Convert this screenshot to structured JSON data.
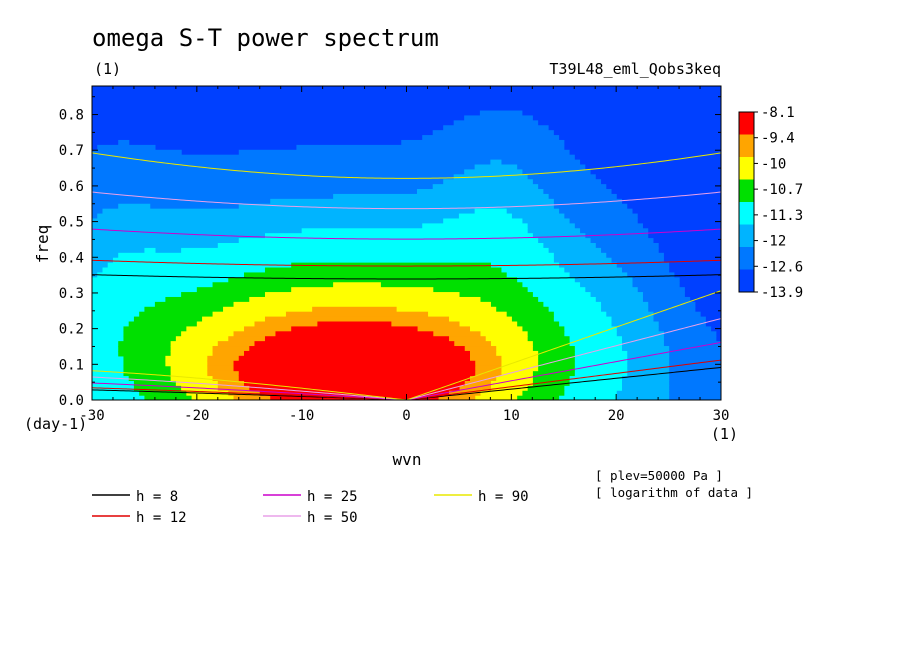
{
  "chart_data": {
    "type": "heatmap",
    "title": "omega S-T power spectrum",
    "subtitle": "(1)",
    "run_label": "T39L48_eml_Qobs3keq",
    "xlabel": "wvn",
    "ylabel": "freq",
    "x_unit": "(1)",
    "y_unit": "(day-1)",
    "xlim": [
      -30,
      30
    ],
    "ylim": [
      0,
      0.88
    ],
    "x_ticks": [
      -30,
      -20,
      -10,
      0,
      10,
      20,
      30
    ],
    "y_ticks": [
      0.0,
      0.1,
      0.2,
      0.3,
      0.4,
      0.5,
      0.6,
      0.7,
      0.8
    ],
    "x_tick_labels": [
      "-30",
      "-20",
      "-10",
      "0",
      "10",
      "20",
      "30"
    ],
    "y_tick_labels": [
      "0.0",
      "0.1",
      "0.2",
      "0.3",
      "0.4",
      "0.5",
      "0.6",
      "0.7",
      "0.8"
    ],
    "colorbar": {
      "labels": [
        "-8.1",
        "-9.4",
        "-10",
        "-10.7",
        "-11.3",
        "-12",
        "-12.6",
        "-13.9"
      ],
      "colors": [
        "#ff0000",
        "#ffa500",
        "#ffff00",
        "#00e000",
        "#00ffff",
        "#00b4ff",
        "#0078ff",
        "#0040ff"
      ]
    },
    "fill_levels": [
      {
        "name": "level-12.6",
        "color": "#0078ff",
        "threshold": -13.3
      },
      {
        "name": "level-12",
        "color": "#00b4ff",
        "threshold": -12.6
      },
      {
        "name": "level-11.3",
        "color": "#00ffff",
        "threshold": -12.0
      },
      {
        "name": "level-10.7",
        "color": "#00e000",
        "threshold": -11.3
      },
      {
        "name": "level-10",
        "color": "#ffff00",
        "threshold": -10.7
      },
      {
        "name": "level-9.4",
        "color": "#ffa500",
        "threshold": -10.0
      },
      {
        "name": "level-8.1",
        "color": "#ff0000",
        "threshold": -9.4
      }
    ],
    "background_color": "#0040ff",
    "dispersion_curves": [
      {
        "h": 8,
        "color": "#000000"
      },
      {
        "h": 12,
        "color": "#e00000"
      },
      {
        "h": 25,
        "color": "#cc00cc"
      },
      {
        "h": 50,
        "color": "#e8a0e8"
      },
      {
        "h": 90,
        "color": "#e8e800"
      }
    ],
    "legend": [
      {
        "text": "h =  8",
        "color": "#000000"
      },
      {
        "text": "h = 12",
        "color": "#e00000"
      },
      {
        "text": "h = 25",
        "color": "#cc00cc"
      },
      {
        "text": "h = 50",
        "color": "#e8a0e8"
      },
      {
        "text": "h = 90",
        "color": "#e8e800"
      }
    ],
    "notes": [
      "[ plev=50000 Pa ]",
      "[ logarithm of data ]"
    ]
  }
}
